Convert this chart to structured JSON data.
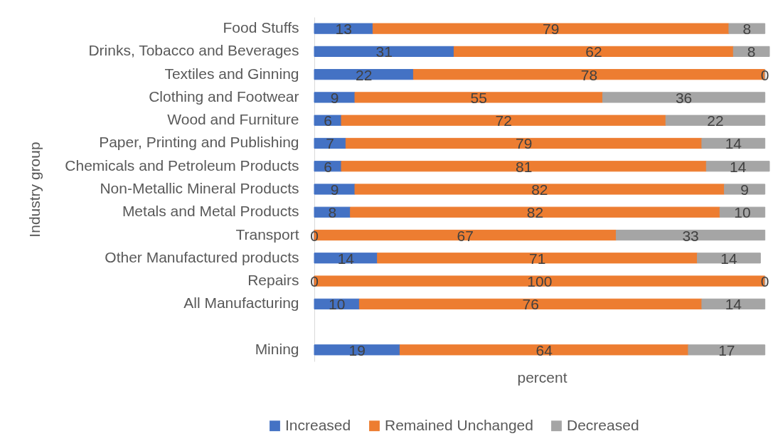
{
  "chart_data": {
    "type": "bar",
    "orientation": "horizontal",
    "stacked": true,
    "xlabel": "percent",
    "ylabel": "Industry group",
    "categories": [
      "Food Stuffs",
      "Drinks, Tobacco and Beverages",
      "Textiles and Ginning",
      "Clothing and Footwear",
      "Wood and Furniture",
      "Paper, Printing and Publishing",
      "Chemicals and Petroleum Products",
      "Non-Metallic Mineral Products",
      "Metals and Metal Products",
      "Transport",
      "Other Manufactured products",
      "Repairs",
      "All Manufacturing",
      null,
      "Mining"
    ],
    "series": [
      {
        "name": "Increased",
        "color": "#4472c4",
        "values": [
          13,
          31,
          22,
          9,
          6,
          7,
          6,
          9,
          8,
          0,
          14,
          0,
          10,
          null,
          19
        ]
      },
      {
        "name": "Remained Unchanged",
        "color": "#ed7d31",
        "values": [
          79,
          62,
          78,
          55,
          72,
          79,
          81,
          82,
          82,
          67,
          71,
          100,
          76,
          null,
          64
        ]
      },
      {
        "name": "Decreased",
        "color": "#a5a5a5",
        "values": [
          8,
          8,
          0,
          36,
          22,
          14,
          14,
          9,
          10,
          33,
          14,
          0,
          14,
          null,
          17
        ]
      }
    ],
    "xlim": [
      0,
      101
    ],
    "tick_labels": "y",
    "data_labels": true,
    "legend": "bottom",
    "grid": false
  }
}
